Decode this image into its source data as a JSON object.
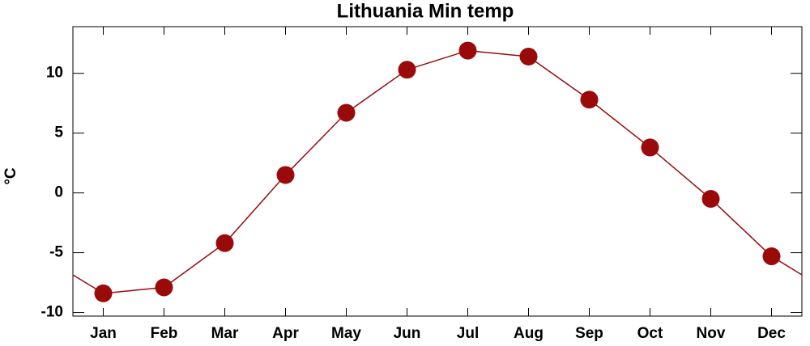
{
  "chart_data": {
    "type": "line",
    "title": "Lithuania Min temp",
    "y_label": "°C",
    "categories": [
      "Jan",
      "Feb",
      "Mar",
      "Apr",
      "May",
      "Jun",
      "Jul",
      "Aug",
      "Sep",
      "Oct",
      "Nov",
      "Dec"
    ],
    "series": [
      {
        "name": "Min temp",
        "color": "#9b0a0a",
        "values": [
          -8.4,
          -7.9,
          -4.2,
          1.5,
          6.7,
          10.3,
          11.9,
          11.4,
          7.8,
          3.8,
          -0.5,
          -5.3
        ]
      }
    ],
    "ylim": [
      -10.3,
      13.9
    ],
    "yticks": [
      -10,
      -5,
      0,
      5,
      10
    ],
    "grid": false,
    "legend": false
  }
}
